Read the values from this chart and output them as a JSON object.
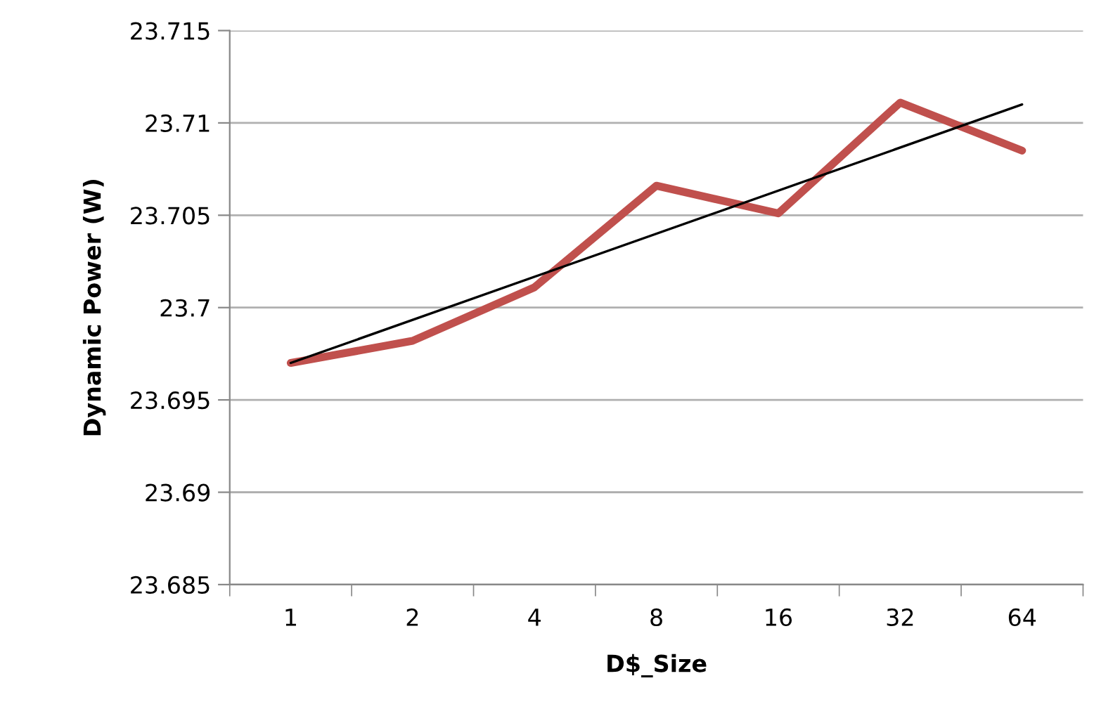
{
  "chart_data": {
    "type": "line",
    "xlabel": "D$_Size",
    "ylabel": "Dynamic Power (W)",
    "categories": [
      "1",
      "2",
      "4",
      "8",
      "16",
      "32",
      "64"
    ],
    "series": [
      {
        "color": "#c0504d",
        "values": [
          23.697,
          23.6982,
          23.7011,
          23.7066,
          23.7051,
          23.7111,
          23.7085
        ]
      },
      {
        "type": "line",
        "color": "#000000",
        "x": [
          "1",
          "64"
        ],
        "values": [
          23.697,
          23.711
        ]
      }
    ],
    "ylim": [
      23.685,
      23.715
    ],
    "yticks": [
      23.685,
      23.69,
      23.695,
      23.7,
      23.705,
      23.71,
      23.715
    ],
    "grid": "y",
    "legend": false,
    "marker": "none",
    "line_style": "solid"
  }
}
